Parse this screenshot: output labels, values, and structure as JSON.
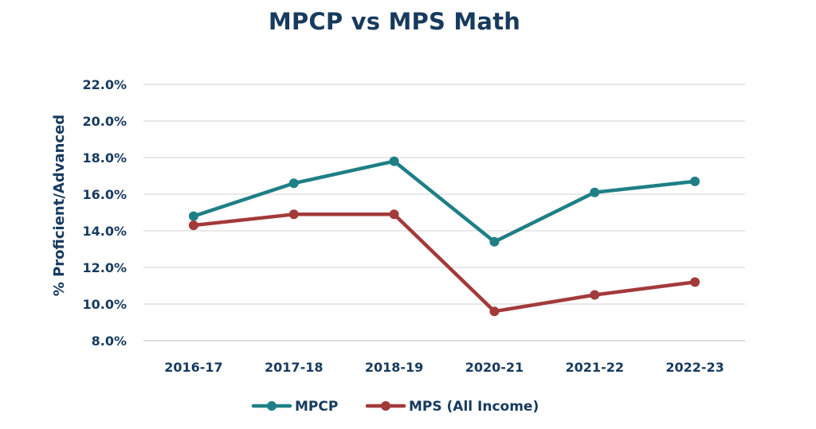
{
  "chart_data": {
    "type": "line",
    "title": "MPCP vs MPS Math",
    "xlabel": "",
    "ylabel": "% Proficient/Advanced",
    "categories": [
      "2016-17",
      "2017-18",
      "2018-19",
      "2020-21",
      "2021-22",
      "2022-23"
    ],
    "y_ticks": [
      "8.0%",
      "10.0%",
      "12.0%",
      "14.0%",
      "16.0%",
      "18.0%",
      "20.0%",
      "22.0%"
    ],
    "ylim": [
      8,
      22
    ],
    "grid": true,
    "legend_position": "bottom",
    "series": [
      {
        "name": "MPCP",
        "color": "#1f7f86",
        "values": [
          14.8,
          16.6,
          17.8,
          13.4,
          16.1,
          16.7
        ]
      },
      {
        "name": "MPS (All Income)",
        "color": "#a33a3a",
        "values": [
          14.3,
          14.9,
          14.9,
          9.6,
          10.5,
          11.2
        ]
      }
    ]
  }
}
